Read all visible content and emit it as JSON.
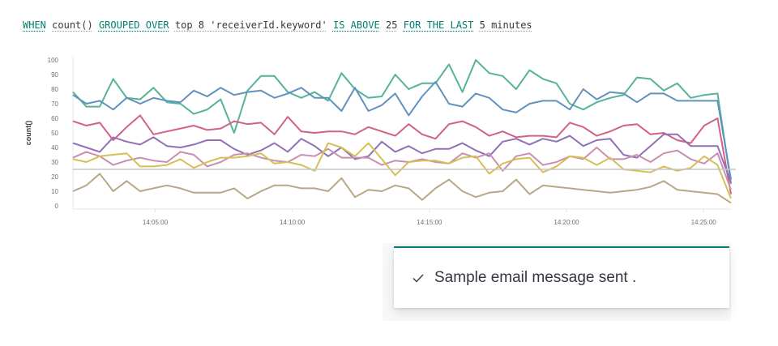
{
  "query": {
    "when": "WHEN",
    "aggregation": "count()",
    "grouped_over": "GROUPED OVER",
    "top": "top 8 'receiverId.keyword'",
    "is_above": "IS ABOVE",
    "threshold_value": "25",
    "for_the_last": "FOR THE LAST",
    "timespan": "5 minutes"
  },
  "toast": {
    "icon": "check-icon",
    "message": "Sample email message sent ."
  },
  "colors": {
    "keyword": "#017d73",
    "threshold": "#c5c5c5",
    "series": [
      "#54b399",
      "#6092c0",
      "#d36086",
      "#9170b8",
      "#ca8eae",
      "#d6bf57",
      "#b9a888"
    ]
  },
  "chart_data": {
    "type": "line",
    "ylabel": "count()",
    "ylim": [
      0,
      100
    ],
    "yticks": [
      0,
      10,
      20,
      30,
      40,
      50,
      60,
      70,
      80,
      90,
      100
    ],
    "x_start": "14:02:00",
    "x_end": "14:26:00",
    "xticks": [
      "14:05:00",
      "14:10:00",
      "14:15:00",
      "14:20:00",
      "14:25:00"
    ],
    "threshold": 25,
    "series": [
      {
        "color": "#54b399",
        "values": [
          78,
          68,
          68,
          87,
          74,
          73,
          81,
          71,
          70,
          63,
          66,
          73,
          50,
          79,
          89,
          89,
          78,
          74,
          78,
          72,
          91,
          80,
          74,
          75,
          90,
          80,
          84,
          84,
          97,
          78,
          100,
          91,
          89,
          80,
          93,
          87,
          84,
          70,
          66,
          71,
          74,
          76,
          88,
          87,
          79,
          84,
          74,
          76,
          77,
          15
        ]
      },
      {
        "color": "#6092c0",
        "values": [
          76,
          70,
          72,
          66,
          74,
          70,
          74,
          72,
          71,
          79,
          75,
          81,
          76,
          78,
          79,
          74,
          77,
          81,
          74,
          74,
          65,
          81,
          65,
          69,
          77,
          62,
          75,
          85,
          70,
          68,
          77,
          74,
          66,
          64,
          70,
          72,
          72,
          66,
          80,
          73,
          78,
          77,
          71,
          77,
          77,
          72,
          72,
          72,
          72,
          18
        ]
      },
      {
        "color": "#d36086",
        "values": [
          58,
          55,
          57,
          45,
          54,
          62,
          49,
          51,
          53,
          55,
          52,
          53,
          58,
          56,
          57,
          49,
          61,
          51,
          50,
          51,
          51,
          49,
          54,
          51,
          48,
          56,
          49,
          46,
          56,
          58,
          54,
          48,
          51,
          47,
          48,
          48,
          47,
          57,
          54,
          48,
          51,
          55,
          56,
          49,
          50,
          45,
          43,
          55,
          60,
          8
        ]
      },
      {
        "color": "#9170b8",
        "values": [
          43,
          40,
          37,
          47,
          44,
          42,
          47,
          41,
          40,
          42,
          45,
          45,
          39,
          35,
          38,
          43,
          37,
          46,
          41,
          34,
          40,
          32,
          34,
          44,
          37,
          41,
          36,
          39,
          39,
          43,
          38,
          34,
          44,
          46,
          42,
          46,
          44,
          48,
          41,
          45,
          46,
          35,
          33,
          41,
          49,
          49,
          41,
          41,
          41,
          16
        ]
      },
      {
        "color": "#ca8eae",
        "values": [
          33,
          37,
          34,
          28,
          31,
          33,
          31,
          30,
          37,
          35,
          27,
          30,
          35,
          36,
          33,
          31,
          30,
          35,
          34,
          39,
          33,
          33,
          33,
          28,
          31,
          30,
          32,
          30,
          29,
          36,
          33,
          36,
          24,
          34,
          36,
          28,
          30,
          34,
          32,
          40,
          32,
          32,
          35,
          30,
          36,
          38,
          32,
          29,
          36,
          11
        ]
      },
      {
        "color": "#d6bf57",
        "values": [
          32,
          30,
          34,
          35,
          36,
          27,
          27,
          28,
          32,
          26,
          30,
          33,
          33,
          34,
          36,
          29,
          30,
          28,
          24,
          43,
          40,
          34,
          43,
          32,
          21,
          30,
          31,
          31,
          29,
          33,
          34,
          22,
          29,
          32,
          33,
          23,
          27,
          34,
          33,
          28,
          33,
          25,
          24,
          23,
          27,
          24,
          26,
          34,
          28,
          5
        ]
      },
      {
        "color": "#b9a888",
        "values": [
          10,
          14,
          22,
          10,
          17,
          10,
          12,
          14,
          12,
          9,
          9,
          9,
          12,
          5,
          10,
          14,
          14,
          12,
          12,
          10,
          19,
          6,
          11,
          10,
          14,
          12,
          4,
          12,
          18,
          10,
          6,
          9,
          10,
          18,
          8,
          14,
          13,
          12,
          11,
          10,
          9,
          10,
          11,
          13,
          17,
          11,
          10,
          9,
          8,
          2
        ]
      }
    ]
  }
}
